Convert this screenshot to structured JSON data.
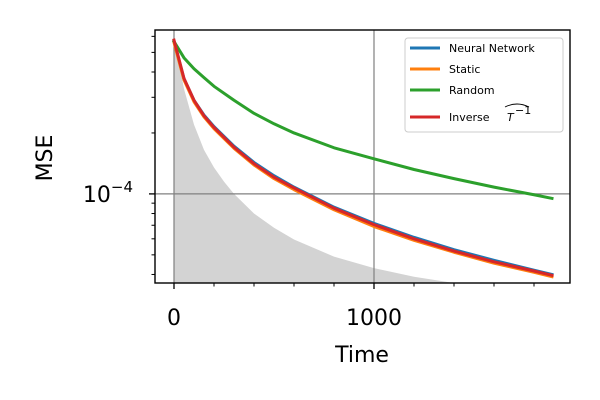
{
  "chart_data": {
    "type": "line",
    "title": "",
    "xlabel": "Time",
    "ylabel": "MSE",
    "xscale": "linear",
    "yscale": "log",
    "xlim": [
      -95,
      1980
    ],
    "ylim": [
      3.63e-05,
      0.000645
    ],
    "grid": "lines at x=0, x=1000 and y=1e-4",
    "legend_position": "top-right",
    "x_ticks": [
      {
        "value": 0,
        "label": "0"
      },
      {
        "value": 1000,
        "label": "1000"
      }
    ],
    "y_ticks": [
      {
        "value": 0.0001,
        "base": "10",
        "exponent": "−4"
      }
    ],
    "x": [
      0,
      50,
      100,
      150,
      200,
      300,
      400,
      500,
      600,
      800,
      1000,
      1200,
      1400,
      1600,
      1800,
      1890
    ],
    "series": [
      {
        "name": "Neural Network",
        "color": "#1f77b4",
        "values": [
          0.000566,
          0.00037,
          0.00029,
          0.000245,
          0.000215,
          0.000172,
          0.000143,
          0.000123,
          0.000108,
          8.6e-05,
          7.15e-05,
          6.1e-05,
          5.3e-05,
          4.7e-05,
          4.2e-05,
          4e-05
        ]
      },
      {
        "name": "Static",
        "color": "#ff7f0e",
        "values": [
          0.00056,
          0.000365,
          0.000285,
          0.00024,
          0.00021,
          0.000168,
          0.000139,
          0.000119,
          0.000105,
          8.35e-05,
          6.9e-05,
          5.9e-05,
          5.15e-05,
          4.55e-05,
          4.1e-05,
          3.9e-05
        ]
      },
      {
        "name": "Random",
        "color": "#2ca02c",
        "values": [
          0.000566,
          0.00047,
          0.000415,
          0.000375,
          0.00034,
          0.00029,
          0.00025,
          0.000222,
          0.0002,
          0.000169,
          0.000149,
          0.000132,
          0.000119,
          0.000108,
          9.9e-05,
          9.5e-05
        ]
      },
      {
        "name": "Inverse",
        "color": "#d62728",
        "values": [
          0.000575,
          0.000372,
          0.00029,
          0.000243,
          0.000213,
          0.00017,
          0.000141,
          0.000121,
          0.000107,
          8.5e-05,
          7.05e-05,
          6e-05,
          5.22e-05,
          4.62e-05,
          4.16e-05,
          3.96e-05
        ]
      }
    ],
    "shaded_area": {
      "color": "#d3d3d3",
      "x": [
        0,
        50,
        100,
        150,
        200,
        250,
        300,
        400,
        500,
        600,
        800,
        1000,
        1200,
        1400
      ],
      "values": [
        0.0006,
        0.00033,
        0.00022,
        0.000165,
        0.000135,
        0.000115,
        0.0001,
        8e-05,
        6.8e-05,
        5.95e-05,
        4.9e-05,
        4.3e-05,
        3.9e-05,
        3.63e-05
      ]
    }
  }
}
